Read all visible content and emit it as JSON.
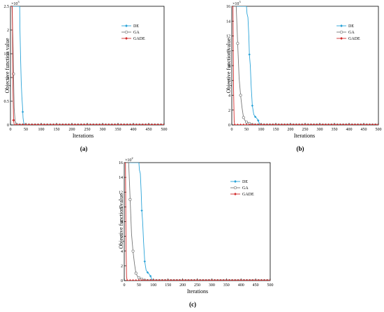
{
  "colors": {
    "DE": "#2aa3d8",
    "GA": "#777777",
    "GADE": "#d22b2b"
  },
  "panels": [
    {
      "letter": "(a)",
      "ylabel": "Objective function value",
      "xlabel": "Iterations",
      "xticks": [
        0,
        50,
        100,
        150,
        200,
        250,
        300,
        350,
        400,
        450,
        500
      ],
      "yticks": [
        "0",
        "0.5",
        "1",
        "1.5",
        "2",
        "2.5"
      ],
      "exponent_base": "10",
      "exponent_power": "3",
      "legend": [
        "DE",
        "GA",
        "GADE"
      ]
    },
    {
      "letter": "(b)",
      "ylabel": "Objective function value",
      "xlabel": "Iterations",
      "xticks": [
        0,
        50,
        100,
        150,
        200,
        250,
        300,
        350,
        400,
        450,
        500
      ],
      "yticks": [
        "0",
        "2",
        "4",
        "6",
        "8",
        "10",
        "12",
        "14",
        "16"
      ],
      "exponent_base": "10",
      "exponent_power": "3",
      "legend": [
        "DE",
        "GA",
        "GADE"
      ]
    },
    {
      "letter": "(c)",
      "ylabel": "Objective function value",
      "xlabel": "Iterations",
      "xticks": [
        0,
        50,
        100,
        150,
        200,
        250,
        300,
        350,
        400,
        450,
        500
      ],
      "yticks": [
        "0",
        "2",
        "4",
        "6",
        "8",
        "10",
        "12",
        "14",
        "16"
      ],
      "exponent_base": "10",
      "exponent_power": "2",
      "legend": [
        "DE",
        "GA",
        "GADE"
      ]
    }
  ],
  "chart_data": [
    {
      "type": "line",
      "title": "",
      "xlabel": "Iterations",
      "ylabel": "Objective function value",
      "xlim": [
        0,
        500
      ],
      "ylim": [
        0,
        2.5
      ],
      "y_scale_factor": "10^3",
      "legend_position": "top-right",
      "grid": false,
      "series": [
        {
          "name": "DE",
          "x": [
            0,
            30,
            31,
            33,
            35,
            37,
            39,
            41,
            43,
            45,
            50,
            55,
            60,
            500
          ],
          "y": [
            2.5,
            2.5,
            2.0,
            1.4,
            0.9,
            0.6,
            0.4,
            0.15,
            0.05,
            0.01,
            0.005,
            0.002,
            0,
            0
          ]
        },
        {
          "name": "GA",
          "x": [
            0,
            5,
            8,
            12,
            15,
            20,
            25,
            500
          ],
          "y": [
            2.5,
            2.5,
            1.8,
            0.35,
            0.08,
            0.01,
            0,
            0
          ]
        },
        {
          "name": "GADE",
          "x": [
            0,
            6,
            8,
            10,
            12,
            15,
            500
          ],
          "y": [
            2.5,
            2.5,
            0.8,
            0.1,
            0.01,
            0,
            0
          ]
        }
      ]
    },
    {
      "type": "line",
      "title": "",
      "xlabel": "Iterations",
      "ylabel": "Objective function value",
      "xlim": [
        0,
        500
      ],
      "ylim": [
        0,
        16
      ],
      "y_scale_factor": "10^3",
      "legend_position": "top-right",
      "grid": false,
      "series": [
        {
          "name": "DE",
          "x": [
            0,
            50,
            52,
            55,
            58,
            60,
            63,
            66,
            70,
            75,
            80,
            85,
            90,
            95,
            100,
            500
          ],
          "y": [
            16,
            16,
            15,
            14.5,
            12,
            9.5,
            8,
            5.3,
            2.6,
            1.4,
            1.1,
            0.9,
            0.6,
            0.1,
            0,
            0
          ]
        },
        {
          "name": "GA",
          "x": [
            0,
            15,
            20,
            25,
            30,
            35,
            40,
            45,
            50,
            55,
            60,
            65,
            70,
            80,
            500
          ],
          "y": [
            16,
            16,
            11,
            6.3,
            4,
            2.3,
            1.0,
            0.6,
            0.4,
            0.3,
            0.2,
            0.1,
            0.05,
            0,
            0
          ]
        },
        {
          "name": "GADE",
          "x": [
            0,
            4,
            6,
            8,
            10,
            500
          ],
          "y": [
            16,
            16,
            5,
            0.5,
            0,
            0
          ]
        }
      ]
    },
    {
      "type": "line",
      "title": "",
      "xlabel": "Iterations",
      "ylabel": "Objective function value",
      "xlim": [
        0,
        500
      ],
      "ylim": [
        0,
        16
      ],
      "y_scale_factor": "10^2",
      "legend_position": "top-right",
      "grid": false,
      "series": [
        {
          "name": "DE",
          "x": [
            0,
            50,
            52,
            55,
            58,
            60,
            63,
            66,
            70,
            75,
            80,
            85,
            90,
            95,
            100,
            500
          ],
          "y": [
            16,
            16,
            15,
            14.5,
            12,
            9.5,
            8,
            5.3,
            2.6,
            1.4,
            1.1,
            0.9,
            0.6,
            0.1,
            0,
            0
          ]
        },
        {
          "name": "GA",
          "x": [
            0,
            15,
            20,
            25,
            30,
            35,
            40,
            45,
            50,
            55,
            60,
            65,
            70,
            80,
            500
          ],
          "y": [
            16,
            16,
            11,
            6.3,
            4,
            2.3,
            1.0,
            0.6,
            0.4,
            0.3,
            0.2,
            0.1,
            0.05,
            0,
            0
          ]
        },
        {
          "name": "GADE",
          "x": [
            0,
            4,
            6,
            8,
            10,
            500
          ],
          "y": [
            16,
            16,
            5,
            0.5,
            0,
            0
          ]
        }
      ]
    }
  ]
}
